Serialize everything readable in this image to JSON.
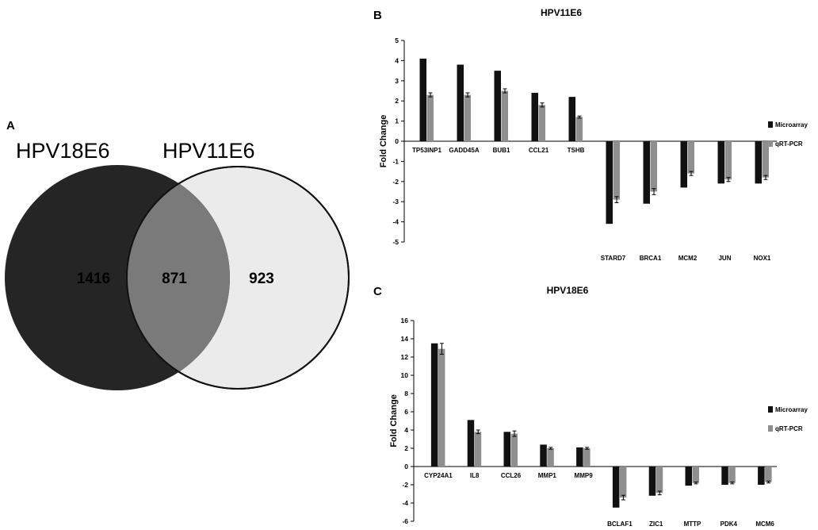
{
  "venn": {
    "panel_label": "A",
    "left_set": {
      "name": "HPV18E6",
      "unique": "1416",
      "color": "#252525"
    },
    "right_set": {
      "name": "HPV11E6",
      "unique": "923",
      "color": "#ebebeb"
    },
    "overlap": {
      "value": "871",
      "color": "#7a7a7a"
    }
  },
  "chart_data": [
    {
      "panel_label": "B",
      "type": "bar",
      "title": "HPV11E6",
      "xlabel": "",
      "ylabel": "Fold Change",
      "ylim": [
        -5,
        5
      ],
      "yticks": [
        5,
        4,
        3,
        2,
        1,
        0,
        -1,
        -2,
        -3,
        -4,
        -5
      ],
      "grid": false,
      "legend": "right",
      "categories": [
        "TP53INP1",
        "GADD45A",
        "BUB1",
        "CCL21",
        "TSHB",
        "STARD7",
        "BRCA1",
        "MCM2",
        "JUN",
        "NOX1"
      ],
      "series": [
        {
          "name": "Microarray",
          "color": "#111111",
          "values": [
            4.1,
            3.8,
            3.5,
            2.4,
            2.2,
            -4.1,
            -3.1,
            -2.3,
            -2.1,
            -2.1
          ],
          "error": [
            0,
            0,
            0,
            0,
            0,
            0,
            0,
            0,
            0,
            0
          ]
        },
        {
          "name": "qRT-PCR",
          "color": "#8f8f8f",
          "values": [
            2.3,
            2.3,
            2.5,
            1.8,
            1.2,
            -2.9,
            -2.5,
            -1.6,
            -1.9,
            -1.8
          ],
          "error": [
            0.1,
            0.1,
            0.1,
            0.1,
            0.05,
            0.15,
            0.15,
            0.1,
            0.1,
            0.1
          ]
        }
      ]
    },
    {
      "panel_label": "C",
      "type": "bar",
      "title": "HPV18E6",
      "xlabel": "",
      "ylabel": "Fold Change",
      "ylim": [
        -6,
        16
      ],
      "yticks": [
        16,
        14,
        12,
        10,
        8,
        6,
        4,
        2,
        0,
        -2,
        -4,
        -6
      ],
      "grid": false,
      "legend": "right",
      "categories": [
        "CYP24A1",
        "IL8",
        "CCL26",
        "MMP1",
        "MMP9",
        "BCLAF1",
        "ZIC1",
        "MTTP",
        "PDK4",
        "MCM6"
      ],
      "series": [
        {
          "name": "Microarray",
          "color": "#111111",
          "values": [
            13.5,
            5.1,
            3.8,
            2.4,
            2.1,
            -4.5,
            -3.2,
            -2.1,
            -2.0,
            -2.0
          ],
          "error": [
            0,
            0,
            0,
            0,
            0,
            0,
            0,
            0,
            0,
            0
          ]
        },
        {
          "name": "qRT-PCR",
          "color": "#8f8f8f",
          "values": [
            12.9,
            3.8,
            3.6,
            2.0,
            2.0,
            -3.4,
            -2.9,
            -1.8,
            -1.8,
            -1.7
          ],
          "error": [
            0.6,
            0.2,
            0.3,
            0.1,
            0.1,
            0.25,
            0.2,
            0.1,
            0.1,
            0.1
          ]
        }
      ]
    }
  ]
}
